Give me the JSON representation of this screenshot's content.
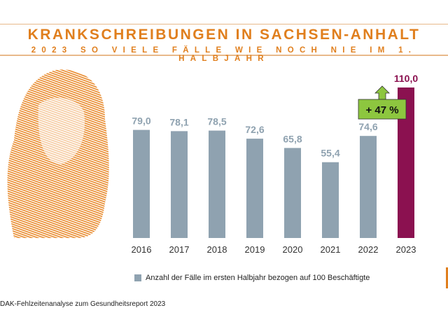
{
  "header": {
    "title": "KRANKSCHREIBUNGEN IN SACHSEN-ANHALT",
    "subtitle": "2023 SO VIELE FÄLLE WIE NOCH NIE IM 1. HALBJAHR"
  },
  "chart_data": {
    "type": "bar",
    "categories": [
      "2016",
      "2017",
      "2018",
      "2019",
      "2020",
      "2021",
      "2022",
      "2023"
    ],
    "values": [
      79.0,
      78.1,
      78.5,
      72.6,
      65.8,
      55.4,
      74.6,
      110.0
    ],
    "value_labels": [
      "79,0",
      "78,1",
      "78,5",
      "72,6",
      "65,8",
      "55,4",
      "74,6",
      "110,0"
    ],
    "bar_colors": [
      "#8fa2b0",
      "#8fa2b0",
      "#8fa2b0",
      "#8fa2b0",
      "#8fa2b0",
      "#8fa2b0",
      "#8fa2b0",
      "#8b1150"
    ],
    "highlight_label_color": "#8b1150",
    "label_color": "#8fa2b0",
    "annotation": {
      "text": "+ 47 %",
      "color": "#8dc63f"
    },
    "legend": {
      "label": "Anzahl der Fälle im ersten Halbjahr bezogen auf 100 Beschäftigte",
      "placement": "bottom"
    },
    "ylim": [
      0,
      115
    ],
    "grid": false
  },
  "footer": {
    "source": "DAK-Fehlzeitenanalyse zum Gesundheitsreport 2023"
  },
  "colors": {
    "accent": "#e07f1e"
  }
}
